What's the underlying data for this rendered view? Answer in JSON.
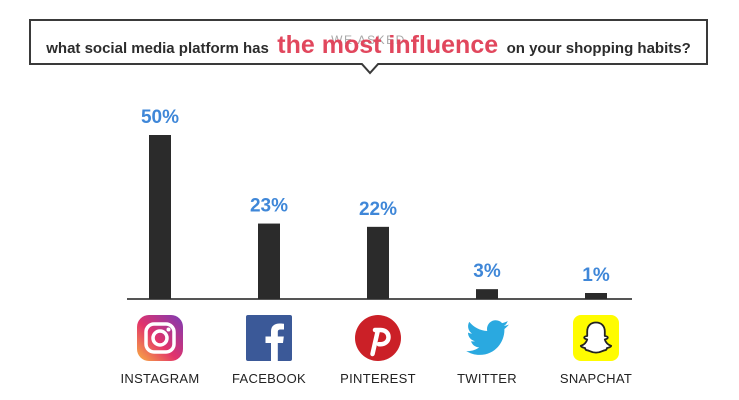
{
  "header": {
    "eyebrow": "WE ASKED",
    "question_pre": "what social media platform has",
    "question_emphasis": "the most influence",
    "question_post": "on your shopping habits?"
  },
  "colors": {
    "bar": "#2b2b2b",
    "value_label": "#3f87d8",
    "emphasis": "#e1475d",
    "axis": "#555555"
  },
  "chart_data": {
    "type": "bar",
    "title": "",
    "xlabel": "",
    "ylabel": "",
    "categories": [
      "INSTAGRAM",
      "FACEBOOK",
      "PINTEREST",
      "TWITTER",
      "SNAPCHAT"
    ],
    "values": [
      50,
      23,
      22,
      3,
      1
    ],
    "value_labels": [
      "50%",
      "23%",
      "22%",
      "3%",
      "1%"
    ],
    "icons": [
      "instagram-icon",
      "facebook-icon",
      "pinterest-icon",
      "twitter-icon",
      "snapchat-icon"
    ],
    "ylim": [
      0,
      50
    ],
    "grid": false,
    "legend": "none"
  }
}
